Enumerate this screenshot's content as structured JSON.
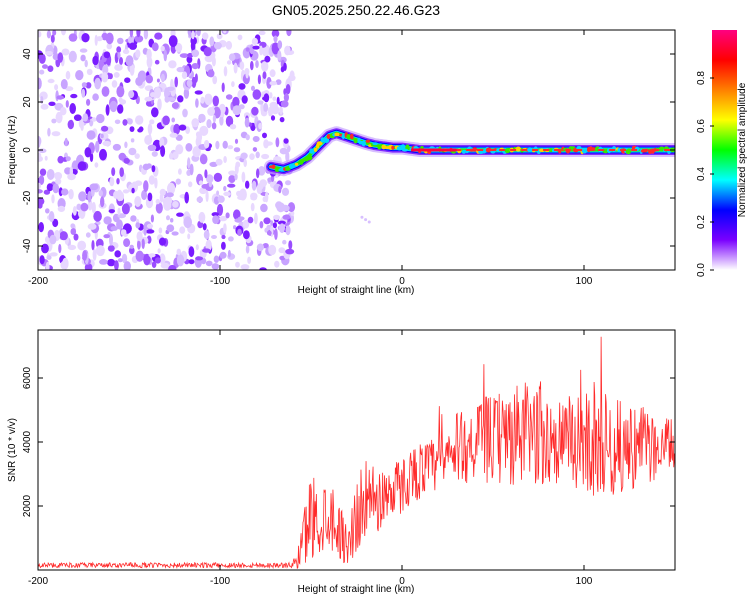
{
  "title": "GN05.2025.250.22.46.G23",
  "chart_data": [
    {
      "type": "heatmap",
      "panel": "top",
      "xlabel": "Height of straight line (km)",
      "ylabel": "Frequency (Hz)",
      "xlim": [
        -200,
        150
      ],
      "ylim": [
        -50,
        50
      ],
      "xticks": [
        "-200",
        "-100",
        "0",
        "100"
      ],
      "yticks": [
        "40",
        "20",
        "0",
        "-20",
        "-40"
      ],
      "noise_region_x": [
        -200,
        -60
      ],
      "signal_track": {
        "x": [
          -72,
          -65,
          -58,
          -52,
          -48,
          -44,
          -40,
          -36,
          -32,
          -28,
          -24,
          -20,
          -15,
          -10,
          -5,
          0,
          5,
          10,
          20,
          40,
          60,
          80,
          100,
          120,
          150
        ],
        "y": [
          -7,
          -8,
          -6,
          -3,
          0,
          3,
          6,
          7,
          6,
          5,
          4,
          3,
          2,
          1.5,
          1,
          1,
          0.5,
          0,
          0,
          0,
          0,
          0,
          0,
          0,
          0
        ]
      },
      "colorbar": {
        "label": "Normalized spectral amplitude",
        "range": [
          0,
          1
        ],
        "ticks": [
          "0.0",
          "0.2",
          "0.4",
          "0.6",
          "0.8"
        ],
        "colors": [
          "#ffffff",
          "#7a00ff",
          "#0000ff",
          "#00ffff",
          "#00ff00",
          "#ffff00",
          "#ff8000",
          "#ff0000",
          "#ff0080"
        ]
      }
    },
    {
      "type": "line",
      "panel": "bottom",
      "xlabel": "Height of straight line (km)",
      "ylabel": "SNR (10 * v/v)",
      "xlim": [
        -200,
        150
      ],
      "ylim": [
        0,
        7500
      ],
      "xticks": [
        "-200",
        "-100",
        "0",
        "100"
      ],
      "yticks": [
        "6000",
        "4000",
        "2000"
      ],
      "series": [
        {
          "name": "SNR",
          "color": "#ff2a2a",
          "envelope_x": [
            -200,
            -60,
            -55,
            -50,
            -45,
            -40,
            -35,
            -30,
            -25,
            -20,
            -15,
            -10,
            -5,
            0,
            5,
            10,
            15,
            20,
            25,
            30,
            40,
            50,
            60,
            70,
            80,
            90,
            100,
            110,
            120,
            130,
            140,
            150
          ],
          "envelope_mid": [
            150,
            150,
            700,
            1800,
            1500,
            1900,
            1300,
            800,
            1600,
            2300,
            2100,
            2300,
            2600,
            2600,
            3000,
            3100,
            3200,
            3300,
            3500,
            3800,
            4000,
            4100,
            4100,
            4300,
            4100,
            4000,
            4000,
            3900,
            3800,
            3900,
            3800,
            3900
          ],
          "envelope_amp": [
            80,
            80,
            900,
            1400,
            1200,
            1200,
            900,
            700,
            1200,
            1200,
            1100,
            1000,
            900,
            900,
            900,
            900,
            900,
            900,
            1000,
            1100,
            1300,
            1400,
            1600,
            1700,
            1500,
            1400,
            1600,
            1700,
            1500,
            1300,
            1000,
            800
          ]
        }
      ]
    }
  ]
}
